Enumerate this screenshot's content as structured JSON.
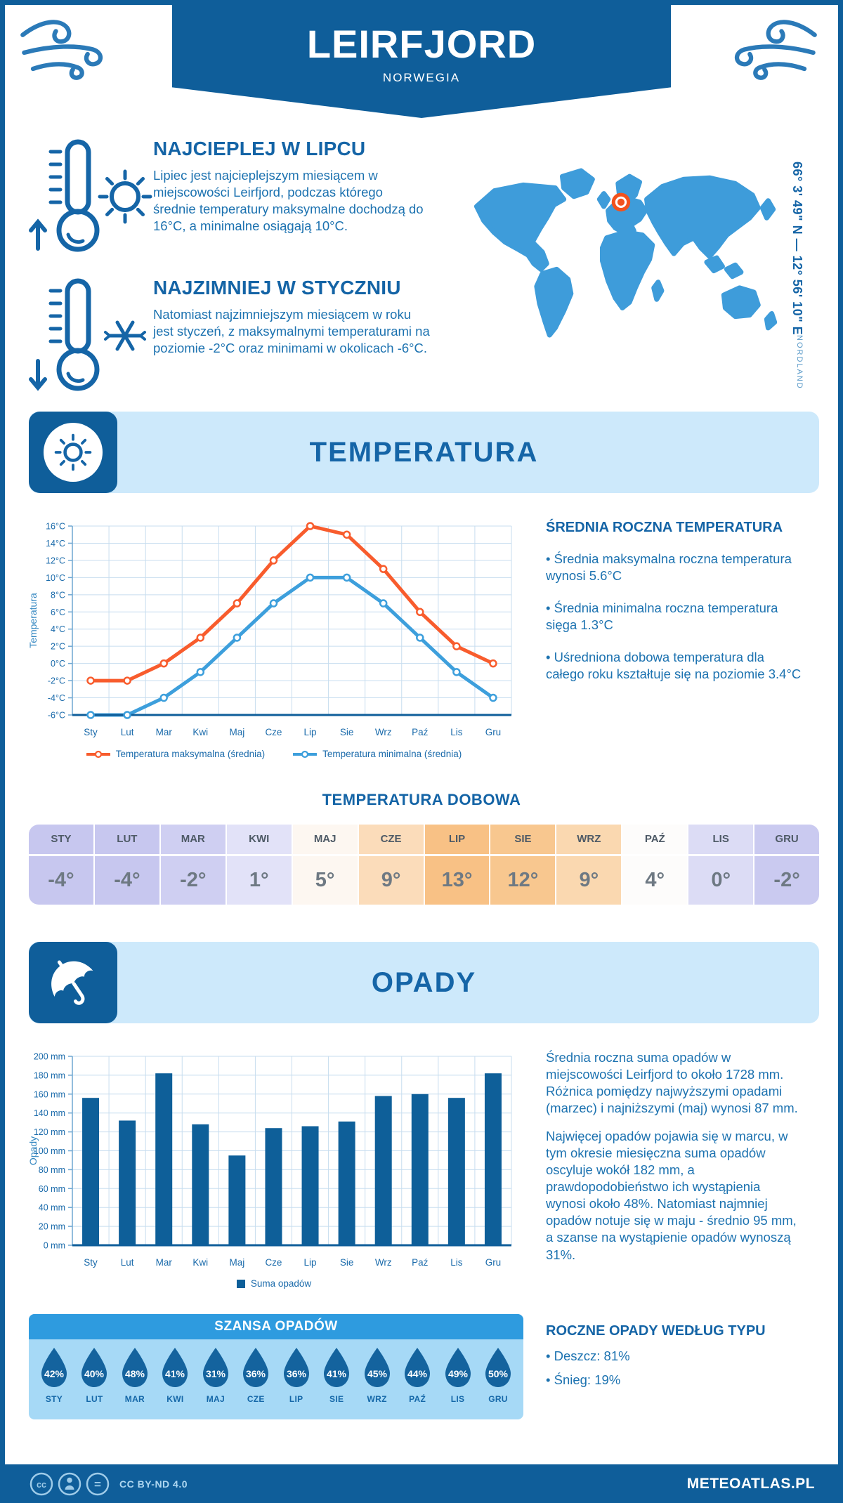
{
  "page": {
    "title": "LEIRFJORD",
    "subtitle": "NORWEGIA",
    "coordinates": "66° 3' 49\" N — 12° 56' 10\" E",
    "region": "NORDLAND"
  },
  "highlights": [
    {
      "heading": "NAJCIEPLEJ W LIPCU",
      "text": "Lipiec jest najcieplejszym miesiącem w miejscowości Leirfjord, podczas którego średnie temperatury maksymalne dochodzą do 16°C, a minimalne osiągają 10°C."
    },
    {
      "heading": "NAJZIMNIEJ W STYCZNIU",
      "text": "Natomiast najzimniejszym miesiącem w roku jest styczeń, z maksymalnymi temperaturami na poziomie -2°C oraz minimami w okolicach -6°C."
    }
  ],
  "sections": {
    "temperature": {
      "title": "TEMPERATURA",
      "annual": {
        "heading": "ŚREDNIA ROCZNA TEMPERATURA",
        "bullets": [
          "• Średnia maksymalna roczna temperatura wynosi 5.6°C",
          "• Średnia minimalna roczna temperatura sięga 1.3°C",
          "• Uśredniona dobowa temperatura dla całego roku kształtuje się na poziomie 3.4°C"
        ]
      },
      "daily_heading": "TEMPERATURA DOBOWA"
    },
    "precipitation": {
      "title": "OPADY",
      "paragraphs": [
        "Średnia roczna suma opadów w miejscowości Leirfjord to około 1728 mm. Różnica pomiędzy najwyższymi opadami (marzec) i najniższymi (maj) wynosi 87 mm.",
        "Najwięcej opadów pojawia się w marcu, w tym okresie miesięczna suma opadów oscyluje wokół 182 mm, a prawdopodobieństwo ich wystąpienia wynosi około 48%. Natomiast najmniej opadów notuje się w maju - średnio 95 mm, a szanse na wystąpienie opadów wynoszą 31%.",
        "Najwięcej opadów pojawia się w marcu, w tym okresie miesięczna suma opadów"
      ],
      "chance_title": "SZANSA OPADÓW",
      "types_heading": "ROCZNE OPADY WEDŁUG TYPU",
      "types": [
        "• Deszcz: 81%",
        "• Śnieg: 19%"
      ]
    }
  },
  "chart_data": [
    {
      "type": "line",
      "title": "TEMPERATURA",
      "categories": [
        "Sty",
        "Lut",
        "Mar",
        "Kwi",
        "Maj",
        "Cze",
        "Lip",
        "Sie",
        "Wrz",
        "Paź",
        "Lis",
        "Gru"
      ],
      "series": [
        {
          "name": "Temperatura maksymalna (średnia)",
          "color": "#f85c2d",
          "values": [
            -2,
            -2,
            0,
            3,
            7,
            12,
            16,
            15,
            11,
            6,
            2,
            0
          ]
        },
        {
          "name": "Temperatura minimalna (średnia)",
          "color": "#3d9fdc",
          "values": [
            -6,
            -6,
            -4,
            -1,
            3,
            7,
            10,
            10,
            7,
            3,
            -1,
            -4
          ]
        }
      ],
      "xlabel": "",
      "ylabel": "Temperatura",
      "ylim": [
        -6,
        16
      ],
      "ytick_step": 2,
      "ytick_suffix": "°C",
      "grid": true,
      "legend_position": "bottom"
    },
    {
      "type": "bar",
      "title": "OPADY",
      "categories": [
        "Sty",
        "Lut",
        "Mar",
        "Kwi",
        "Maj",
        "Cze",
        "Lip",
        "Sie",
        "Wrz",
        "Paź",
        "Lis",
        "Gru"
      ],
      "series": [
        {
          "name": "Suma opadów",
          "color": "#0e5f99",
          "values": [
            156,
            132,
            182,
            128,
            95,
            124,
            126,
            131,
            158,
            160,
            156,
            182
          ]
        }
      ],
      "xlabel": "",
      "ylabel": "Opady",
      "ylim": [
        0,
        200
      ],
      "ytick_step": 20,
      "ytick_suffix": " mm",
      "grid": true,
      "legend_position": "bottom"
    }
  ],
  "daily_table": {
    "months": [
      "STY",
      "LUT",
      "MAR",
      "KWI",
      "MAJ",
      "CZE",
      "LIP",
      "SIE",
      "WRZ",
      "PAŹ",
      "LIS",
      "GRU"
    ],
    "values": [
      "-4°",
      "-4°",
      "-2°",
      "1°",
      "5°",
      "9°",
      "13°",
      "12°",
      "9°",
      "4°",
      "0°",
      "-2°"
    ],
    "colors": [
      "#c7c7ef",
      "#c7c7ef",
      "#cfcff2",
      "#e2e2f8",
      "#fdf7f1",
      "#fbdcba",
      "#f8c185",
      "#f8c78f",
      "#fad8b0",
      "#fdfcfb",
      "#dcdcf5",
      "#cacaf0"
    ]
  },
  "chance": {
    "months": [
      "STY",
      "LUT",
      "MAR",
      "KWI",
      "MAJ",
      "CZE",
      "LIP",
      "SIE",
      "WRZ",
      "PAŹ",
      "LIS",
      "GRU"
    ],
    "values": [
      "42%",
      "40%",
      "48%",
      "41%",
      "31%",
      "36%",
      "36%",
      "41%",
      "45%",
      "44%",
      "49%",
      "50%"
    ]
  },
  "footer": {
    "license": "CC BY-ND 4.0",
    "site": "METEOATLAS.PL",
    "icons": [
      "cc-icon",
      "attribution-person-icon",
      "no-derivatives-equals-icon"
    ]
  },
  "colors": {
    "primary_dark": "#0f5e9a",
    "heading_blue": "#1464a6",
    "text_blue": "#1c72b0",
    "band_bg": "#cde9fb",
    "chance_bg": "#a6d9f6",
    "chance_header": "#2e9bdf",
    "map_blue": "#3e9cda",
    "marker_orange": "#f2521d",
    "grid_line": "#c7ddef",
    "droplet_blue": "#14639e"
  }
}
